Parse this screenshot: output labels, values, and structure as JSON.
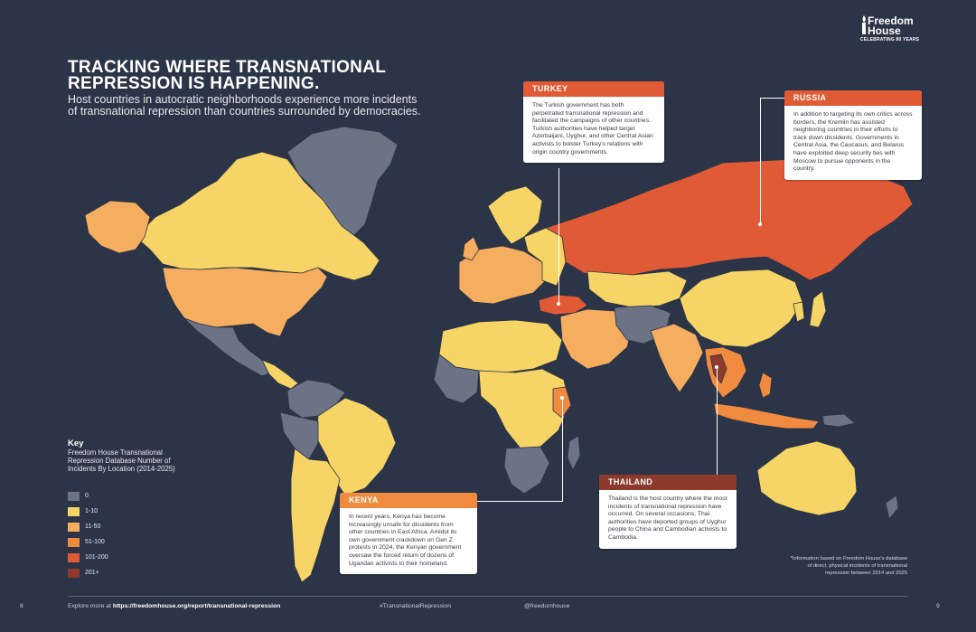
{
  "logo": {
    "line1": "Freedom",
    "line2": "House",
    "tagline": "CELEBRATING 80 YEARS"
  },
  "title": {
    "line1": "TRACKING WHERE TRANSNATIONAL",
    "line2": "REPRESSION IS HAPPENING."
  },
  "subtitle": {
    "line1": "Host countries in autocratic neighborhoods experience more incidents",
    "line2": "of transnational repression than countries surrounded by democracies."
  },
  "callouts": {
    "turkey": {
      "heading": "TURKEY",
      "body": "The Turkish government has both perpetrated transnational repression and facilitated the campaigns of other countries. Turkish authorities have helped target Azerbaijani, Uyghur, and other Central Asian activists to bolster Turkey's relations with origin country governments."
    },
    "russia": {
      "heading": "RUSSIA",
      "body": "In addition to targeting its own critics across borders, the Kremlin has assisted neighboring countries in their efforts to track down dissidents. Governments in Central Asia, the Caucasus, and Belarus have exploited deep security ties with Moscow to pursue opponents in the country."
    },
    "kenya": {
      "heading": "KENYA",
      "body": "In recent years, Kenya has become increasingly unsafe for dissidents from other countries in East Africa. Amidst its own government crackdown on Gen Z protests in 2024, the Kenyan government oversaw the forced return of dozens of Ugandan activists to their homeland."
    },
    "thailand": {
      "heading": "THAILAND",
      "body": "Thailand is the host country where the most incidents of transnational repression have occurred. On several occasions, Thai authorities have deported groups of Uyghur people to China and Cambodian activists to Cambodia."
    }
  },
  "key": {
    "title": "Key",
    "subtitle": "Freedom House Transnational Repression Database Number of Incidents By Location (2014-2025)",
    "items": [
      {
        "label": "0",
        "color": "#6b7384"
      },
      {
        "label": "1-10",
        "color": "#f6d465"
      },
      {
        "label": "11-50",
        "color": "#f5ad5f"
      },
      {
        "label": "51-100",
        "color": "#f08a3e"
      },
      {
        "label": "101-200",
        "color": "#e05a35"
      },
      {
        "label": "201+",
        "color": "#8c3a2c"
      }
    ]
  },
  "note": {
    "line1": "*Information based on Freedom House's database",
    "line2": "of direct, physical incidents of transnational",
    "line3": "repression between 2014 and 2025"
  },
  "footer": {
    "page_left": "8",
    "explore_prefix": "Explore more at ",
    "explore_url": "https://freedomhouse.org/report/transnational-repression",
    "hashtag": "#TransnationalRepression",
    "handle": "@freedomhouse",
    "page_right": "9"
  },
  "colors": {
    "background": "#2c3447",
    "zero": "#6b7384",
    "low": "#f6d465",
    "mid": "#f5ad5f",
    "high": "#f08a3e",
    "veryhigh": "#e05a35",
    "top": "#8c3a2c",
    "turkey_head": "#e05a35",
    "russia_head": "#e05a35",
    "kenya_head": "#f08a3e",
    "thailand_head": "#8c3a2c"
  }
}
